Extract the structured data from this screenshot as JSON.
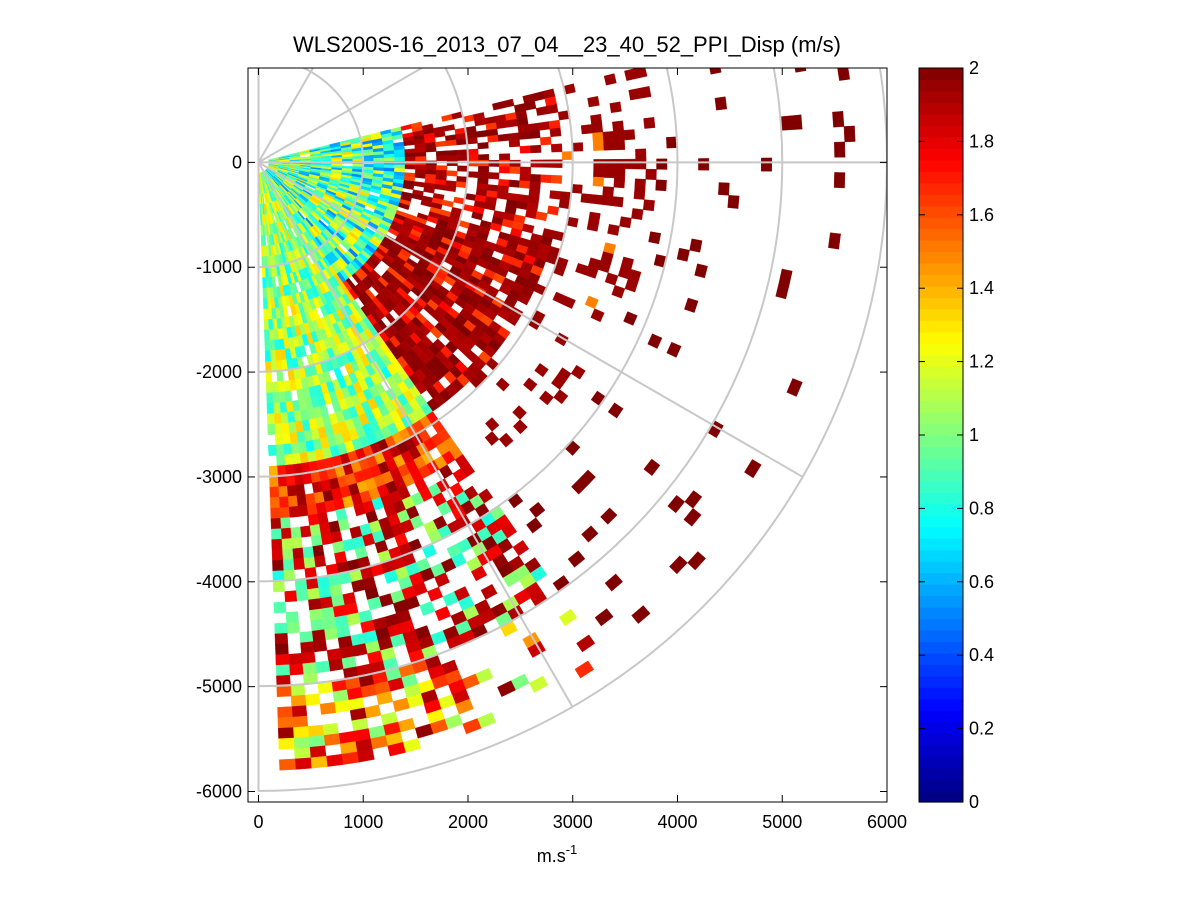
{
  "chart_data": {
    "type": "heatmap",
    "subtype": "polar PPI scan sector",
    "title": "WLS200S-16_2013_07_04__23_40_52_PPI_Disp (m/s)",
    "xlabel": "m.s",
    "xlabel_superscript": "-1",
    "ylabel": "",
    "xlim": [
      -100,
      6000
    ],
    "ylim": [
      -6100,
      900
    ],
    "x_ticks": [
      0,
      1000,
      2000,
      3000,
      4000,
      5000,
      6000
    ],
    "x_tick_labels": [
      "0",
      "1000",
      "2000",
      "3000",
      "4000",
      "5000",
      "6000"
    ],
    "y_ticks": [
      0,
      -1000,
      -2000,
      -3000,
      -4000,
      -5000,
      -6000
    ],
    "y_tick_labels": [
      "0",
      "-1000",
      "-2000",
      "-3000",
      "-4000",
      "-5000",
      "-6000"
    ],
    "polar_grid": {
      "origin": [
        0,
        0
      ],
      "range_rings": [
        1000,
        2000,
        3000,
        4000,
        5000,
        6000
      ],
      "radial_spokes_deg": [
        0,
        30,
        60,
        90,
        -30,
        -60,
        -90
      ]
    },
    "scan_sector": {
      "azimuth_start_deg": 14,
      "azimuth_end_deg": -88,
      "range_min": 0,
      "range_max": 5800,
      "gate_spacing": 100,
      "beam_spacing_deg": 1.5
    },
    "profile": {
      "near_range_values": [
        0.5,
        1.3
      ],
      "mid_range_upper_sector": 1.9,
      "southern_sector_values": [
        0.8,
        1.3
      ],
      "far_range_sparse": 2.0
    },
    "colorbar": {
      "colormap": "jet",
      "clim": [
        0,
        2
      ],
      "ticks": [
        0,
        0.2,
        0.4,
        0.6,
        0.8,
        1,
        1.2,
        1.4,
        1.6,
        1.8,
        2
      ],
      "tick_labels": [
        "0",
        "0.2",
        "0.4",
        "0.6",
        "0.8",
        "1",
        "1.2",
        "1.4",
        "1.6",
        "1.8",
        "2"
      ]
    },
    "grid": "polar",
    "legend": "none"
  },
  "colors": {
    "axis": "#000000",
    "grid": "#c8c8c8",
    "background": "#ffffff"
  }
}
